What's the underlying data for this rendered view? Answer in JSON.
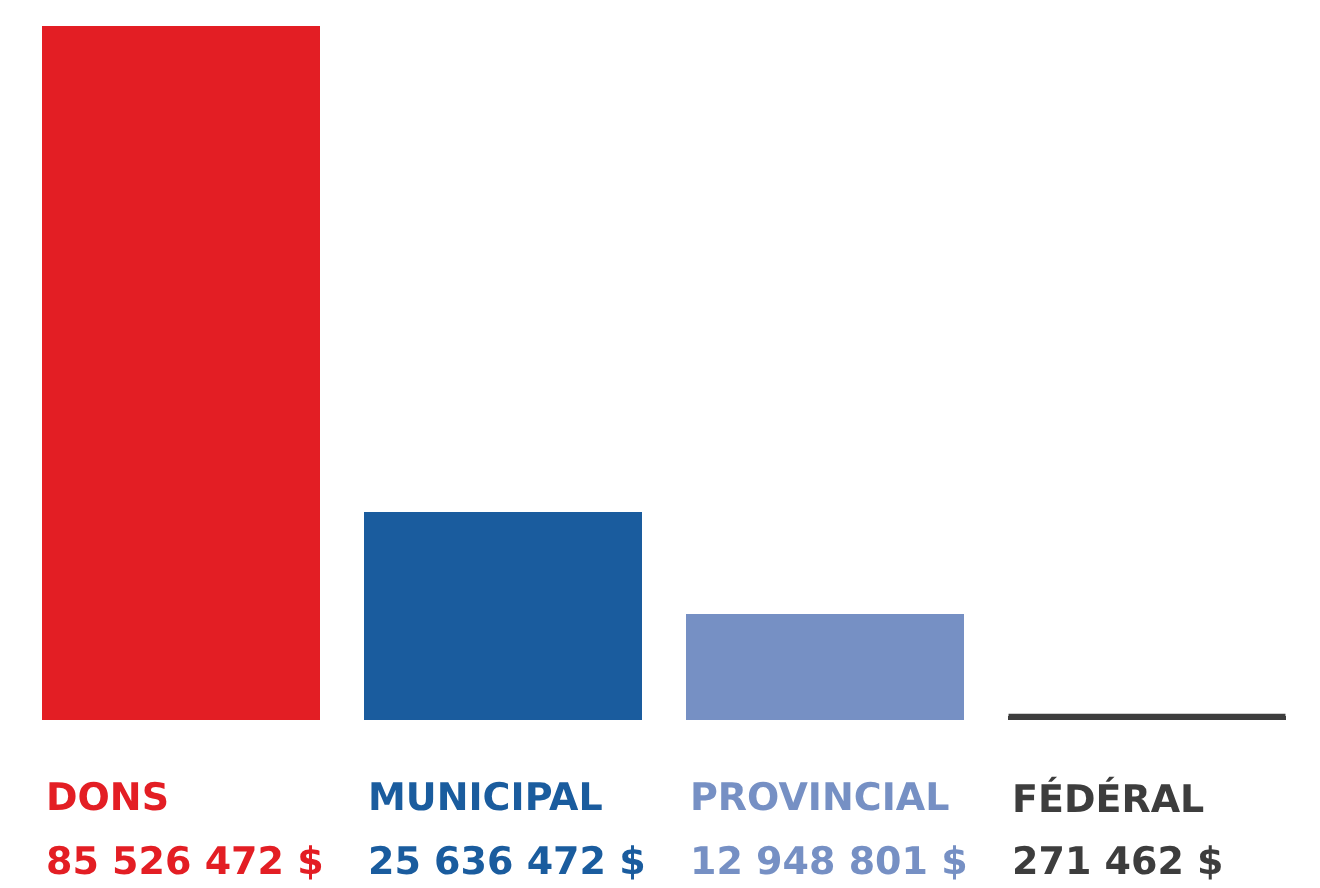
{
  "chart_data": {
    "type": "bar",
    "categories": [
      "DONS",
      "MUNICIPAL",
      "PROVINCIAL",
      "FÉDÉRAL"
    ],
    "values": [
      85526472,
      25636472,
      12948801,
      271462
    ],
    "colors": [
      "#e31e24",
      "#1a5c9e",
      "#7690c4",
      "#3d3d3d"
    ],
    "value_labels": [
      "85 526 472 $",
      "25 636 472 $",
      "12 948 801 $",
      "271 462 $"
    ],
    "legend": false
  }
}
